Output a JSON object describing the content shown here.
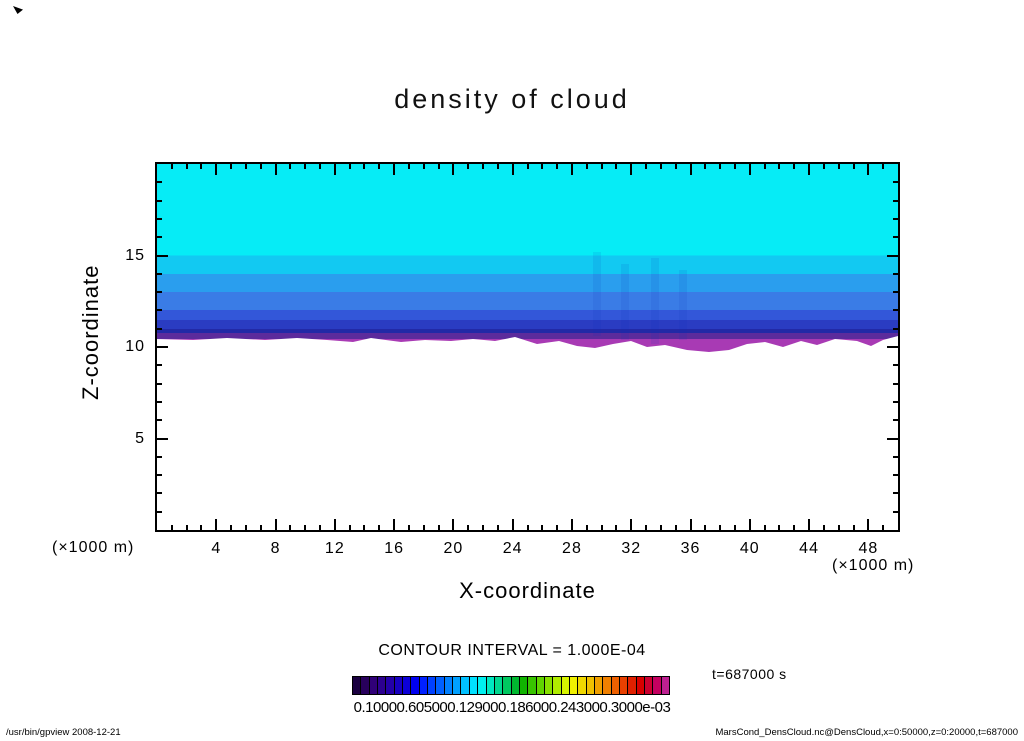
{
  "title": "density of cloud",
  "plot": {
    "xlabel": "X-coordinate",
    "ylabel": "Z-coordinate",
    "x_unit_label": "(×1000 m)",
    "y_unit_label": "(×1000 m)",
    "x_ticks": [
      4,
      8,
      12,
      16,
      20,
      24,
      28,
      32,
      36,
      40,
      44,
      48
    ],
    "y_ticks": [
      5,
      10,
      15
    ],
    "x_range": [
      0,
      50
    ],
    "y_range": [
      0,
      20
    ]
  },
  "annotations": {
    "contour_interval": "CONTOUR INTERVAL = 1.000E-04",
    "time_label": "t=687000 s",
    "colorbar_tick_text": "0.10000.605000.129000.186000.243000.3000e-03"
  },
  "footer": {
    "left": "/usr/bin/gpview  2008-12-21",
    "right": "MarsCond_DensCloud.nc@DensCloud,x=0:50000,z=0:20000,t=687000"
  },
  "colorbar": {
    "colors": [
      "#1a0040",
      "#28005c",
      "#300078",
      "#2c0090",
      "#2400a8",
      "#1800c0",
      "#0c00d8",
      "#0000f0",
      "#0020ff",
      "#0040ff",
      "#0060ff",
      "#0080ff",
      "#00a0ff",
      "#00c0ff",
      "#00e0ff",
      "#00f0f0",
      "#00e8c0",
      "#00d890",
      "#00c860",
      "#00b830",
      "#10b400",
      "#38c400",
      "#60d400",
      "#88e000",
      "#b0ec00",
      "#d8f400",
      "#f0f000",
      "#f0d800",
      "#f0c000",
      "#f0a000",
      "#f08000",
      "#ee6000",
      "#e84000",
      "#e02000",
      "#d80000",
      "#cc0030",
      "#c40060",
      "#bc2090"
    ]
  },
  "chart_data": {
    "type": "heatmap",
    "title": "density of cloud",
    "xlabel": "X-coordinate (×1000 m)",
    "ylabel": "Z-coordinate (×1000 m)",
    "x_range": [
      0,
      50
    ],
    "y_range": [
      0,
      20
    ],
    "x_tick_labels": [
      4,
      8,
      12,
      16,
      20,
      24,
      28,
      32,
      36,
      40,
      44,
      48
    ],
    "y_tick_labels": [
      5,
      10,
      15
    ],
    "contour_interval": "1.000E-04",
    "time": "t=687000 s",
    "legend_position": "bottom colorbar",
    "grid": false,
    "description": "Filled contour plot of cloud density. Uniform cyan from top of domain down to z≈15, then progressively darker blue bands toward the cloud base; thin purple then magenta band at the irregular cloud base near z≈10.3; white (no cloud) below.",
    "bands": [
      {
        "z_from": 15.0,
        "z_to": 20.0,
        "color": "#06ecf6"
      },
      {
        "z_from": 14.0,
        "z_to": 15.0,
        "color": "#12c9f2"
      },
      {
        "z_from": 13.0,
        "z_to": 14.0,
        "color": "#2a9eee"
      },
      {
        "z_from": 12.0,
        "z_to": 13.0,
        "color": "#3a7ce6"
      },
      {
        "z_from": 11.5,
        "z_to": 12.0,
        "color": "#3357d9"
      },
      {
        "z_from": 11.0,
        "z_to": 11.5,
        "color": "#2a3cc2"
      },
      {
        "z_from": 10.8,
        "z_to": 11.0,
        "color": "#2229a6"
      },
      {
        "z_from": 10.5,
        "z_to": 10.8,
        "color": "#5c2b9c"
      },
      {
        "z_from": 10.3,
        "z_to": 10.5,
        "color": "#a83ab4"
      }
    ],
    "below_cloud": "white, no contour fill below z≈10.3"
  }
}
